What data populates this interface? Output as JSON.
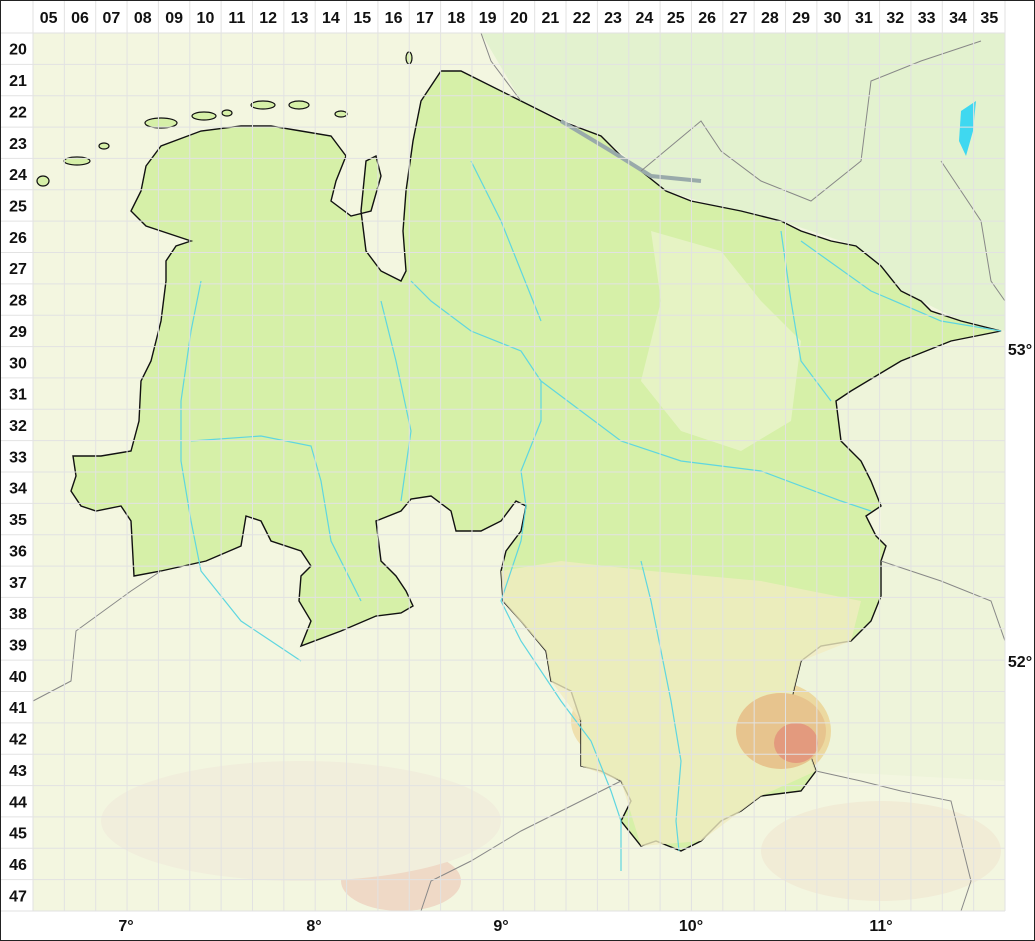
{
  "map": {
    "columns": [
      "05",
      "06",
      "07",
      "08",
      "09",
      "10",
      "11",
      "12",
      "13",
      "14",
      "15",
      "16",
      "17",
      "18",
      "19",
      "20",
      "21",
      "22",
      "23",
      "24",
      "25",
      "26",
      "27",
      "28",
      "29",
      "30",
      "31",
      "32",
      "33",
      "34",
      "35"
    ],
    "rows": [
      "20",
      "21",
      "22",
      "23",
      "24",
      "25",
      "26",
      "27",
      "28",
      "29",
      "30",
      "31",
      "32",
      "33",
      "34",
      "35",
      "36",
      "37",
      "38",
      "39",
      "40",
      "41",
      "42",
      "43",
      "44",
      "45",
      "46",
      "47"
    ],
    "longitudes": [
      "7°",
      "8°",
      "9°",
      "10°",
      "11°"
    ],
    "latitudes": [
      "53°",
      "52°"
    ],
    "colors": {
      "state_fill": "#d6f0a8",
      "state_border": "#111111",
      "outside_fill": "#f4f6e2",
      "hills": "#e8c98c",
      "peaks": "#e08a70",
      "rivers": "#5fd6e0",
      "grid": "#e2e2e2",
      "borders": "#888888"
    }
  }
}
